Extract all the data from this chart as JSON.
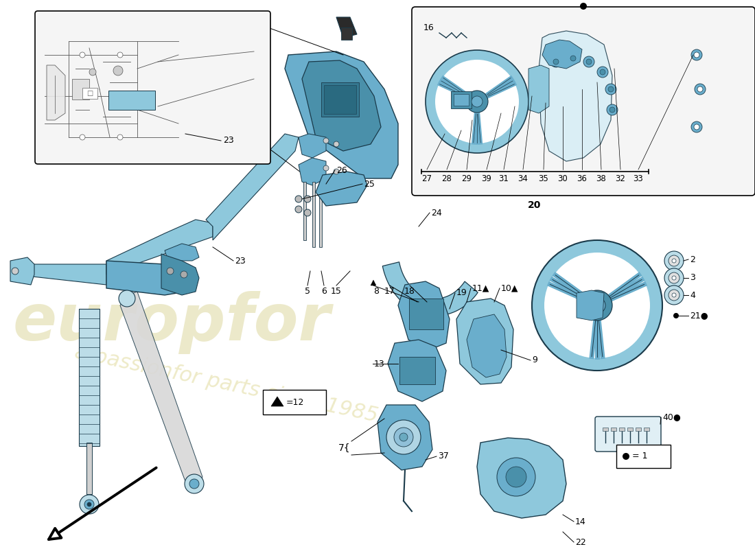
{
  "bg": "#ffffff",
  "blue1": "#8ec8dc",
  "blue2": "#6aaecc",
  "blue3": "#4a90aa",
  "blue4": "#bcdde8",
  "dark": "#1a3a4a",
  "gray1": "#888888",
  "gray2": "#aaaaaa",
  "wm1": "#ddd8a0",
  "wm2": "#e0da9a",
  "figw": 11.0,
  "figh": 8.0,
  "dpi": 100
}
